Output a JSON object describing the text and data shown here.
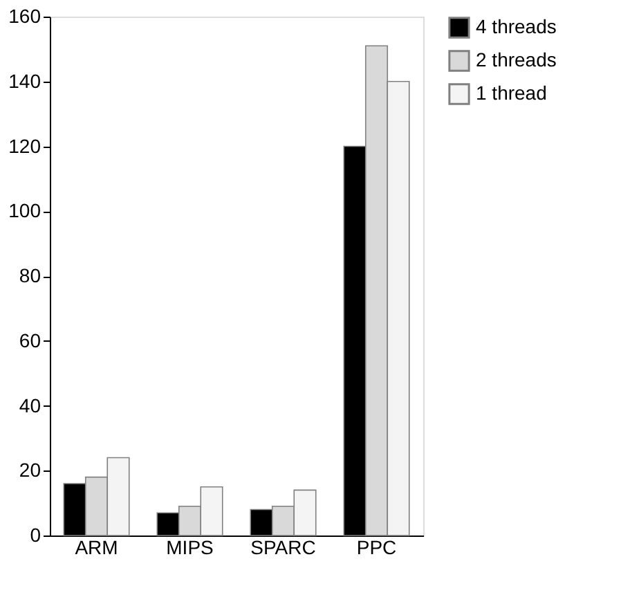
{
  "chart_data": {
    "type": "bar",
    "categories": [
      "ARM",
      "MIPS",
      "SPARC",
      "PPC"
    ],
    "series": [
      {
        "name": "4 threads",
        "color": "#000000",
        "values": [
          16,
          7,
          8,
          120
        ]
      },
      {
        "name": "2 threads",
        "color": "#d9d9d9",
        "values": [
          18,
          9,
          9,
          151
        ]
      },
      {
        "name": "1 thread",
        "color": "#f4f4f4",
        "values": [
          24,
          15,
          14,
          140
        ]
      }
    ],
    "ylim": [
      0,
      160
    ],
    "yticks": [
      0,
      20,
      40,
      60,
      80,
      100,
      120,
      140,
      160
    ],
    "grid": false,
    "legend": "right"
  }
}
